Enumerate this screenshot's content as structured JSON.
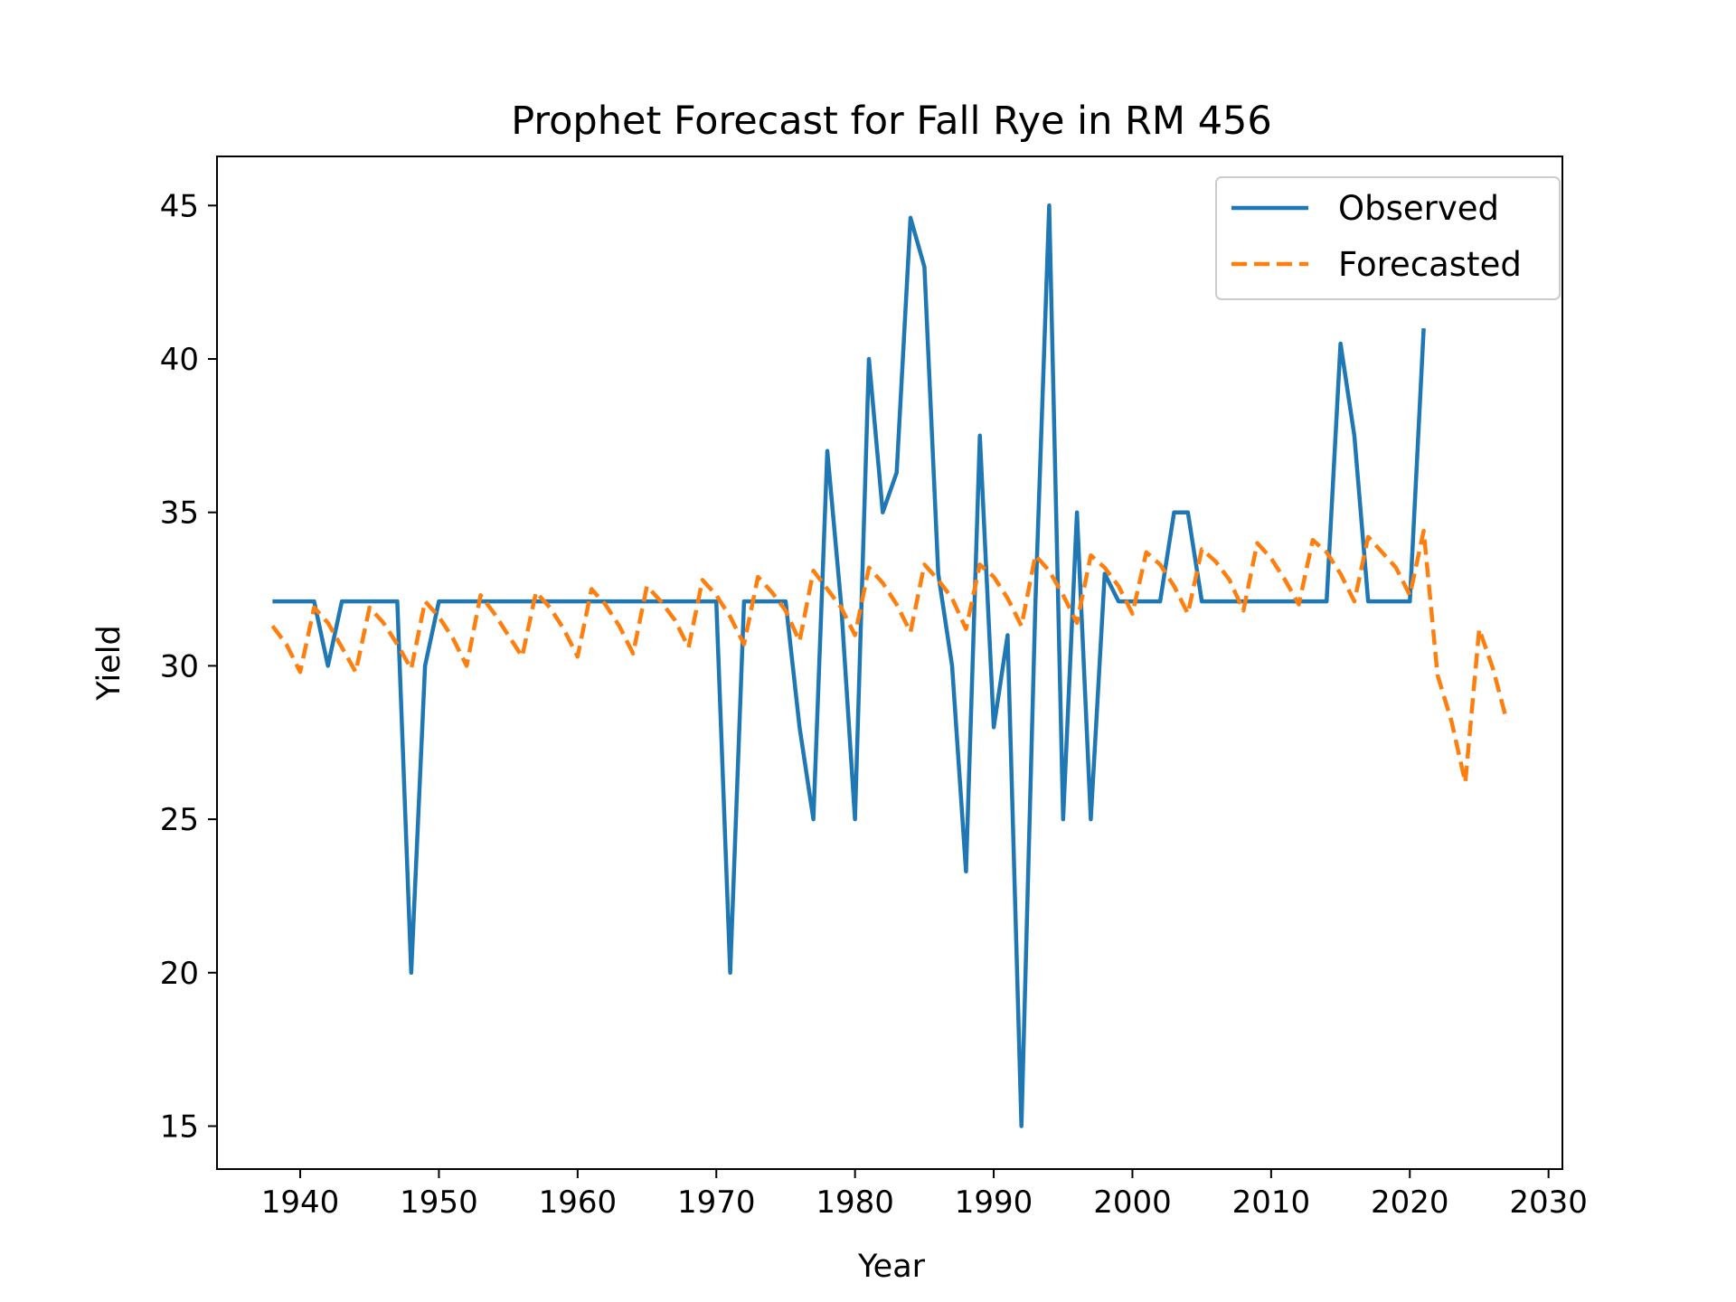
{
  "chart_data": {
    "type": "line",
    "title": "Prophet Forecast for Fall Rye in RM 456",
    "xlabel": "Year",
    "ylabel": "Yield",
    "xlim": [
      1934,
      2031
    ],
    "ylim": [
      13.6,
      46.6
    ],
    "xticks": [
      1940,
      1950,
      1960,
      1970,
      1980,
      1990,
      2000,
      2010,
      2020,
      2030
    ],
    "yticks": [
      15,
      20,
      25,
      30,
      35,
      40,
      45
    ],
    "grid": false,
    "legend_position": "top-right",
    "series": [
      {
        "name": "Observed",
        "color": "#1f77b4",
        "style": "solid",
        "x": [
          1938,
          1939,
          1940,
          1941,
          1942,
          1943,
          1944,
          1945,
          1946,
          1947,
          1948,
          1949,
          1950,
          1951,
          1952,
          1953,
          1954,
          1955,
          1956,
          1957,
          1958,
          1959,
          1960,
          1961,
          1962,
          1963,
          1964,
          1965,
          1966,
          1967,
          1968,
          1969,
          1970,
          1971,
          1972,
          1973,
          1974,
          1975,
          1976,
          1977,
          1978,
          1979,
          1980,
          1981,
          1982,
          1983,
          1984,
          1985,
          1986,
          1987,
          1988,
          1989,
          1990,
          1991,
          1992,
          1993,
          1994,
          1995,
          1996,
          1997,
          1998,
          1999,
          2000,
          2001,
          2002,
          2003,
          2004,
          2005,
          2006,
          2007,
          2008,
          2009,
          2010,
          2011,
          2012,
          2013,
          2014,
          2015,
          2016,
          2017,
          2018,
          2019,
          2020,
          2021
        ],
        "y": [
          32.1,
          32.1,
          32.1,
          32.1,
          30,
          32.1,
          32.1,
          32.1,
          32.1,
          32.1,
          20,
          30,
          32.1,
          32.1,
          32.1,
          32.1,
          32.1,
          32.1,
          32.1,
          32.1,
          32.1,
          32.1,
          32.1,
          32.1,
          32.1,
          32.1,
          32.1,
          32.1,
          32.1,
          32.1,
          32.1,
          32.1,
          32.1,
          20,
          32.1,
          32.1,
          32.1,
          32.1,
          28,
          25,
          37,
          32,
          25,
          40,
          35,
          36.3,
          44.6,
          43,
          33,
          30,
          23.3,
          37.5,
          28,
          31,
          15,
          32,
          45,
          25,
          35,
          25,
          33,
          32.1,
          32.1,
          32.1,
          32.1,
          35,
          35,
          32.1,
          32.1,
          32.1,
          32.1,
          32.1,
          32.1,
          32.1,
          32.1,
          32.1,
          32.1,
          40.5,
          37.5,
          32.1,
          32.1,
          32.1,
          32.1,
          41
        ]
      },
      {
        "name": "Forecasted",
        "color": "#ff7f0e",
        "style": "dashed",
        "x": [
          1938,
          1939,
          1940,
          1941,
          1942,
          1943,
          1944,
          1945,
          1946,
          1947,
          1948,
          1949,
          1950,
          1951,
          1952,
          1953,
          1954,
          1955,
          1956,
          1957,
          1958,
          1959,
          1960,
          1961,
          1962,
          1963,
          1964,
          1965,
          1966,
          1967,
          1968,
          1969,
          1970,
          1971,
          1972,
          1973,
          1974,
          1975,
          1976,
          1977,
          1978,
          1979,
          1980,
          1981,
          1982,
          1983,
          1984,
          1985,
          1986,
          1987,
          1988,
          1989,
          1990,
          1991,
          1992,
          1993,
          1994,
          1995,
          1996,
          1997,
          1998,
          1999,
          2000,
          2001,
          2002,
          2003,
          2004,
          2005,
          2006,
          2007,
          2008,
          2009,
          2010,
          2011,
          2012,
          2013,
          2014,
          2015,
          2016,
          2017,
          2018,
          2019,
          2020,
          2021,
          2022,
          2023,
          2024,
          2025,
          2026,
          2027
        ],
        "y": [
          31.3,
          30.7,
          29.8,
          31.9,
          31.4,
          30.6,
          29.8,
          31.9,
          31.4,
          30.7,
          29.9,
          32.1,
          31.6,
          30.9,
          30.0,
          32.3,
          31.7,
          31.0,
          30.3,
          32.4,
          31.9,
          31.2,
          30.3,
          32.5,
          32.0,
          31.3,
          30.4,
          32.6,
          32.1,
          31.5,
          30.6,
          32.8,
          32.3,
          31.6,
          30.7,
          32.9,
          32.4,
          31.8,
          30.8,
          33.1,
          32.5,
          31.9,
          31.0,
          33.2,
          32.7,
          32.0,
          31.1,
          33.3,
          32.8,
          32.2,
          31.2,
          33.3,
          32.9,
          32.2,
          31.3,
          33.6,
          33.1,
          32.3,
          31.4,
          33.6,
          33.2,
          32.6,
          31.7,
          33.7,
          33.3,
          32.6,
          31.7,
          33.8,
          33.4,
          32.8,
          31.8,
          34.0,
          33.5,
          32.8,
          32.0,
          34.1,
          33.7,
          33.0,
          32.1,
          34.2,
          33.7,
          33.2,
          32.3,
          34.4,
          29.7,
          28.2,
          26.2,
          31.2,
          29.9,
          28.2
        ]
      }
    ]
  }
}
